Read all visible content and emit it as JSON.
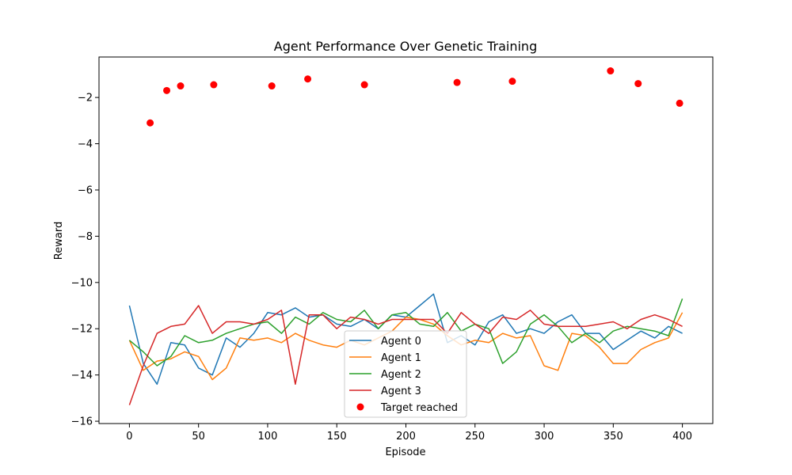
{
  "chart_data": {
    "type": "line",
    "title": "Agent Performance Over Genetic Training",
    "xlabel": "Episode",
    "ylabel": "Reward",
    "xlim": [
      -22,
      422
    ],
    "ylim": [
      -16.1,
      -0.25
    ],
    "xticks": [
      0,
      50,
      100,
      150,
      200,
      250,
      300,
      350,
      400
    ],
    "yticks": [
      -16,
      -14,
      -12,
      -10,
      -8,
      -6,
      -4,
      -2
    ],
    "legend_position": "bottom-center",
    "target_reached_label": "Target reached",
    "target_color": "#ff0000",
    "highlights": [
      {
        "x": 15,
        "y": -3.1
      },
      {
        "x": 27,
        "y": -1.7
      },
      {
        "x": 37,
        "y": -1.5
      },
      {
        "x": 61,
        "y": -1.45
      },
      {
        "x": 103,
        "y": -1.5
      },
      {
        "x": 129,
        "y": -1.2
      },
      {
        "x": 170,
        "y": -1.45
      },
      {
        "x": 237,
        "y": -1.35
      },
      {
        "x": 277,
        "y": -1.3
      },
      {
        "x": 348,
        "y": -0.85
      },
      {
        "x": 368,
        "y": -1.4
      },
      {
        "x": 398,
        "y": -2.25
      }
    ],
    "series": [
      {
        "name": "Agent 0",
        "color": "#1f77b4",
        "x": [
          0,
          10,
          20,
          30,
          40,
          50,
          60,
          70,
          80,
          90,
          100,
          110,
          120,
          130,
          140,
          150,
          160,
          170,
          180,
          190,
          200,
          210,
          220,
          230,
          240,
          250,
          260,
          270,
          280,
          290,
          300,
          310,
          320,
          330,
          340,
          350,
          360,
          370,
          380,
          390,
          400
        ],
        "values": [
          -11,
          -13.5,
          -14.4,
          -12.6,
          -12.7,
          -13.7,
          -14.0,
          -12.4,
          -12.8,
          -12.2,
          -11.3,
          -11.4,
          -11.1,
          -11.5,
          -11.4,
          -11.8,
          -11.9,
          -11.6,
          -12.0,
          -11.4,
          -11.5,
          -11.0,
          -10.5,
          -12.6,
          -12.3,
          -12.7,
          -11.7,
          -11.4,
          -12.2,
          -12.0,
          -12.2,
          -11.7,
          -11.4,
          -12.2,
          -12.2,
          -12.9,
          -12.5,
          -12.1,
          -12.4,
          -11.9,
          -12.2
        ]
      },
      {
        "name": "Agent 1",
        "color": "#ff7f0e",
        "x": [
          0,
          10,
          20,
          30,
          40,
          50,
          60,
          70,
          80,
          90,
          100,
          110,
          120,
          130,
          140,
          150,
          160,
          170,
          180,
          190,
          200,
          210,
          220,
          230,
          240,
          250,
          260,
          270,
          280,
          290,
          300,
          310,
          320,
          330,
          340,
          350,
          360,
          370,
          380,
          390,
          400
        ],
        "values": [
          -12.5,
          -13.8,
          -13.4,
          -13.3,
          -13.0,
          -13.2,
          -14.2,
          -13.7,
          -12.4,
          -12.5,
          -12.4,
          -12.6,
          -12.2,
          -12.5,
          -12.7,
          -12.8,
          -12.5,
          -12.7,
          -12.4,
          -12.1,
          -11.5,
          -11.6,
          -11.8,
          -12.3,
          -12.7,
          -12.5,
          -12.6,
          -12.2,
          -12.4,
          -12.3,
          -13.6,
          -13.8,
          -12.2,
          -12.3,
          -12.8,
          -13.5,
          -13.5,
          -12.9,
          -12.6,
          -12.4,
          -11.3
        ]
      },
      {
        "name": "Agent 2",
        "color": "#2ca02c",
        "x": [
          0,
          10,
          20,
          30,
          40,
          50,
          60,
          70,
          80,
          90,
          100,
          110,
          120,
          130,
          140,
          150,
          160,
          170,
          180,
          190,
          200,
          210,
          220,
          230,
          240,
          250,
          260,
          270,
          280,
          290,
          300,
          310,
          320,
          330,
          340,
          350,
          360,
          370,
          380,
          390,
          400
        ],
        "values": [
          -12.5,
          -13.0,
          -13.6,
          -13.2,
          -12.3,
          -12.6,
          -12.5,
          -12.2,
          -12.0,
          -11.8,
          -11.7,
          -12.2,
          -11.5,
          -11.8,
          -11.3,
          -11.6,
          -11.7,
          -11.2,
          -12.0,
          -11.4,
          -11.3,
          -11.8,
          -11.9,
          -11.3,
          -12.1,
          -11.8,
          -12.0,
          -13.5,
          -13.0,
          -11.8,
          -11.4,
          -11.9,
          -12.6,
          -12.2,
          -12.6,
          -12.1,
          -11.9,
          -12.0,
          -12.1,
          -12.3,
          -10.7
        ]
      },
      {
        "name": "Agent 3",
        "color": "#d62728",
        "x": [
          0,
          10,
          20,
          30,
          40,
          50,
          60,
          70,
          80,
          90,
          100,
          110,
          120,
          130,
          140,
          150,
          160,
          170,
          180,
          190,
          200,
          210,
          220,
          230,
          240,
          250,
          260,
          270,
          280,
          290,
          300,
          310,
          320,
          330,
          340,
          350,
          360,
          370,
          380,
          390,
          400
        ],
        "values": [
          -15.3,
          -13.6,
          -12.2,
          -11.9,
          -11.8,
          -11.0,
          -12.2,
          -11.7,
          -11.7,
          -11.8,
          -11.6,
          -11.2,
          -14.4,
          -11.4,
          -11.4,
          -12.0,
          -11.5,
          -11.6,
          -11.8,
          -11.6,
          -11.6,
          -11.6,
          -11.6,
          -12.2,
          -11.3,
          -11.8,
          -12.2,
          -11.5,
          -11.6,
          -11.2,
          -11.8,
          -11.9,
          -11.9,
          -11.9,
          -11.8,
          -11.7,
          -12.0,
          -11.6,
          -11.4,
          -11.6,
          -11.9
        ]
      }
    ]
  }
}
